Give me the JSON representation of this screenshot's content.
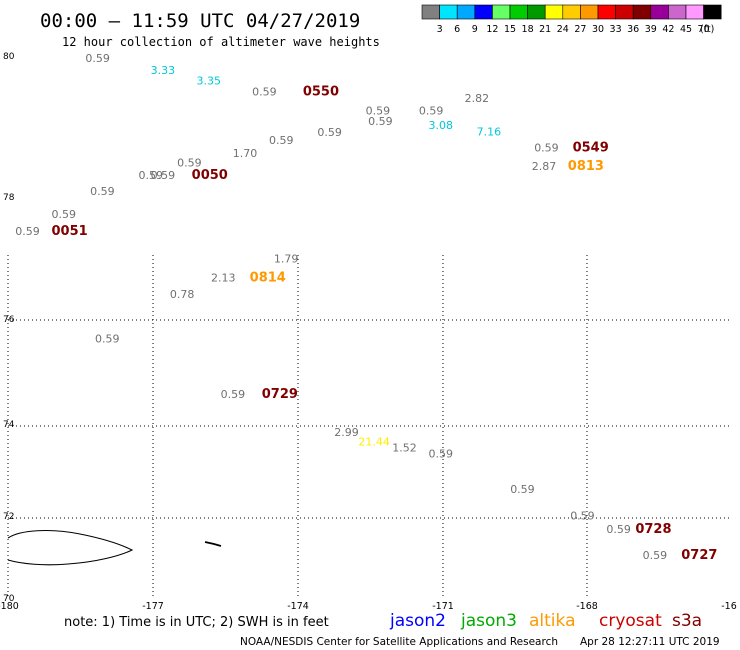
{
  "title": "00:00 – 11:59 UTC 04/27/2019",
  "subtitle": "12 hour collection of altimeter wave heights",
  "legend": {
    "unit": "(ft)",
    "bins": [
      {
        "label": "3",
        "color": "#808080"
      },
      {
        "label": "6",
        "color": "#00e5ff"
      },
      {
        "label": "9",
        "color": "#00a8ff"
      },
      {
        "label": "12",
        "color": "#0000ff"
      },
      {
        "label": "15",
        "color": "#66ff66"
      },
      {
        "label": "18",
        "color": "#00cc00"
      },
      {
        "label": "21",
        "color": "#009900"
      },
      {
        "label": "24",
        "color": "#ffff00"
      },
      {
        "label": "27",
        "color": "#ffcc00"
      },
      {
        "label": "30",
        "color": "#ff9900"
      },
      {
        "label": "33",
        "color": "#ff0000"
      },
      {
        "label": "36",
        "color": "#cc0000"
      },
      {
        "label": "39",
        "color": "#800000"
      },
      {
        "label": "42",
        "color": "#990099"
      },
      {
        "label": "45",
        "color": "#cc66cc"
      },
      {
        "label": "70",
        "color": "#ff99ff"
      },
      {
        "label": "",
        "color": "#000000"
      }
    ]
  },
  "axes": {
    "lon_ticks": [
      "-180",
      "-177",
      "-174",
      "-171",
      "-168",
      "-16"
    ],
    "lat_ticks": [
      "80",
      "78",
      "76",
      "74",
      "72",
      "70"
    ]
  },
  "labels": [
    {
      "text": "0.59",
      "lon": -178.4,
      "lat": 79.9,
      "color": "#707070"
    },
    {
      "text": "3.33",
      "lon": -177.05,
      "lat": 79.73,
      "color": "#00c8d8"
    },
    {
      "text": "3.35",
      "lon": -176.1,
      "lat": 79.58,
      "color": "#00c8d8"
    },
    {
      "text": "0.59",
      "lon": -174.95,
      "lat": 79.42,
      "color": "#707070"
    },
    {
      "text": "0550",
      "lon": -173.9,
      "lat": 79.42,
      "color": "#800000",
      "bold": true
    },
    {
      "text": "0.59",
      "lon": -172.6,
      "lat": 79.15,
      "color": "#707070"
    },
    {
      "text": "0.59",
      "lon": -171.5,
      "lat": 79.15,
      "color": "#707070"
    },
    {
      "text": "2.82",
      "lon": -170.55,
      "lat": 79.33,
      "color": "#707070"
    },
    {
      "text": "0.59",
      "lon": -172.55,
      "lat": 79.0,
      "color": "#707070"
    },
    {
      "text": "3.08",
      "lon": -171.3,
      "lat": 78.94,
      "color": "#00c8d8"
    },
    {
      "text": "7.16",
      "lon": -170.3,
      "lat": 78.85,
      "color": "#00c8d8"
    },
    {
      "text": "0.59",
      "lon": -173.6,
      "lat": 78.84,
      "color": "#707070"
    },
    {
      "text": "0.59",
      "lon": -174.6,
      "lat": 78.73,
      "color": "#707070"
    },
    {
      "text": "1.70",
      "lon": -175.35,
      "lat": 78.54,
      "color": "#707070"
    },
    {
      "text": "0.59",
      "lon": -169.1,
      "lat": 78.62,
      "color": "#707070"
    },
    {
      "text": "0549",
      "lon": -168.3,
      "lat": 78.62,
      "color": "#800000",
      "bold": true
    },
    {
      "text": "2.87",
      "lon": -169.15,
      "lat": 78.36,
      "color": "#707070"
    },
    {
      "text": "0813",
      "lon": -168.4,
      "lat": 78.36,
      "color": "#ff9900",
      "bold": true
    },
    {
      "text": "0.59",
      "lon": -176.5,
      "lat": 78.41,
      "color": "#707070"
    },
    {
      "text": "0.59",
      "lon": -177.3,
      "lat": 78.23,
      "color": "#707070"
    },
    {
      "text": "0.59",
      "lon": -177.05,
      "lat": 78.23,
      "color": "#707070"
    },
    {
      "text": "0050",
      "lon": -176.2,
      "lat": 78.23,
      "color": "#800000",
      "bold": true
    },
    {
      "text": "0.59",
      "lon": -178.3,
      "lat": 78.0,
      "color": "#707070"
    },
    {
      "text": "0.59",
      "lon": -179.1,
      "lat": 77.63,
      "color": "#707070"
    },
    {
      "text": "0.59",
      "lon": -179.85,
      "lat": 77.36,
      "color": "#707070"
    },
    {
      "text": "0051",
      "lon": -179.1,
      "lat": 77.36,
      "color": "#800000",
      "bold": true
    },
    {
      "text": "1.79",
      "lon": -174.5,
      "lat": 76.92,
      "color": "#707070"
    },
    {
      "text": "2.13",
      "lon": -175.8,
      "lat": 76.62,
      "color": "#707070"
    },
    {
      "text": "0814",
      "lon": -175.0,
      "lat": 76.62,
      "color": "#ff9900",
      "bold": true
    },
    {
      "text": "0.78",
      "lon": -176.65,
      "lat": 76.35,
      "color": "#707070"
    },
    {
      "text": "0.59",
      "lon": -178.2,
      "lat": 75.58,
      "color": "#707070"
    },
    {
      "text": "0.59",
      "lon": -175.6,
      "lat": 74.53,
      "color": "#707070"
    },
    {
      "text": "0729",
      "lon": -174.75,
      "lat": 74.53,
      "color": "#800000",
      "bold": true
    },
    {
      "text": "2.99",
      "lon": -173.25,
      "lat": 73.78,
      "color": "#707070"
    },
    {
      "text": "21.44",
      "lon": -172.75,
      "lat": 73.58,
      "color": "#ffee00"
    },
    {
      "text": "1.52",
      "lon": -172.05,
      "lat": 73.45,
      "color": "#707070"
    },
    {
      "text": "0.59",
      "lon": -171.3,
      "lat": 73.31,
      "color": "#707070"
    },
    {
      "text": "0.59",
      "lon": -169.6,
      "lat": 72.54,
      "color": "#707070"
    },
    {
      "text": "0.59",
      "lon": -168.35,
      "lat": 71.96,
      "color": "#707070"
    },
    {
      "text": "0.59",
      "lon": -167.6,
      "lat": 71.62,
      "color": "#707070"
    },
    {
      "text": "0728",
      "lon": -167.0,
      "lat": 71.62,
      "color": "#800000",
      "bold": true
    },
    {
      "text": "0.59",
      "lon": -166.85,
      "lat": 70.98,
      "color": "#707070"
    },
    {
      "text": "0727",
      "lon": -166.05,
      "lat": 70.98,
      "color": "#800000",
      "bold": true
    }
  ],
  "note": "note: 1) Time is in UTC; 2) SWH is in feet",
  "satellites": [
    {
      "name": "jason2",
      "color": "#0000ff"
    },
    {
      "name": "jason3",
      "color": "#00aa00"
    },
    {
      "name": "altika",
      "color": "#ff9900"
    },
    {
      "name": "cryosat",
      "color": "#cc0000"
    },
    {
      "name": "s3a",
      "color": "#800000"
    }
  ],
  "credit": "NOAA/NESDIS Center for Satellite Applications and Research",
  "timestamp": "Apr 28 12:27:11 UTC 2019"
}
